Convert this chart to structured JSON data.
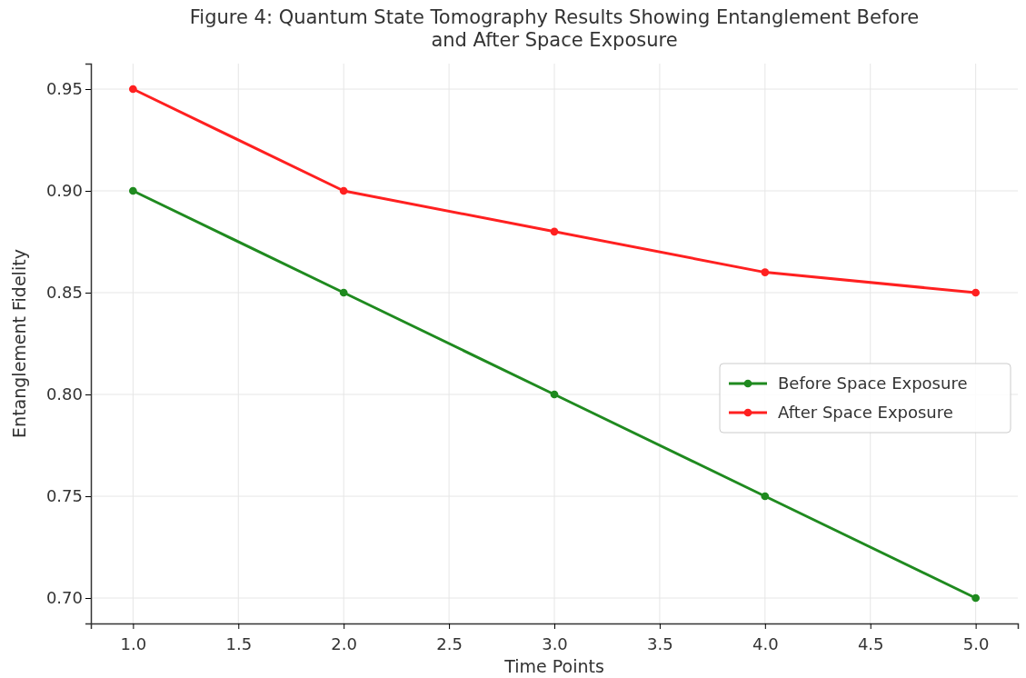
{
  "chart_data": {
    "type": "line",
    "title": "Figure 4: Quantum State Tomography Results Showing Entanglement Before and After Space Exposure",
    "xlabel": "Time Points",
    "ylabel": "Entanglement Fidelity",
    "x": [
      1,
      2,
      3,
      4,
      5
    ],
    "series": [
      {
        "name": "Before Space Exposure",
        "color": "#1f8a1f",
        "values": [
          0.9,
          0.85,
          0.8,
          0.75,
          0.7
        ]
      },
      {
        "name": "After Space Exposure",
        "color": "#ff2020",
        "values": [
          0.95,
          0.9,
          0.88,
          0.86,
          0.85
        ]
      }
    ],
    "xlim": [
      0.8,
      5.2
    ],
    "xticks": [
      {
        "value": 1,
        "label": "1.0"
      },
      {
        "value": 1.5,
        "label": "1.5"
      },
      {
        "value": 2,
        "label": "2.0"
      },
      {
        "value": 2.5,
        "label": "2.5"
      },
      {
        "value": 3,
        "label": "3.0"
      },
      {
        "value": 3.5,
        "label": "3.5"
      },
      {
        "value": 4,
        "label": "4.0"
      },
      {
        "value": 4.5,
        "label": "4.5"
      },
      {
        "value": 5,
        "label": "5.0"
      }
    ],
    "ylim": [
      0.6875,
      0.9625
    ],
    "yticks": [
      {
        "value": 0.7,
        "label": "0.70"
      },
      {
        "value": 0.75,
        "label": "0.75"
      },
      {
        "value": 0.8,
        "label": "0.80"
      },
      {
        "value": 0.85,
        "label": "0.85"
      },
      {
        "value": 0.9,
        "label": "0.90"
      },
      {
        "value": 0.95,
        "label": "0.95"
      }
    ],
    "grid": true,
    "legend": "right",
    "marker": "circle",
    "line_style": "solid"
  }
}
